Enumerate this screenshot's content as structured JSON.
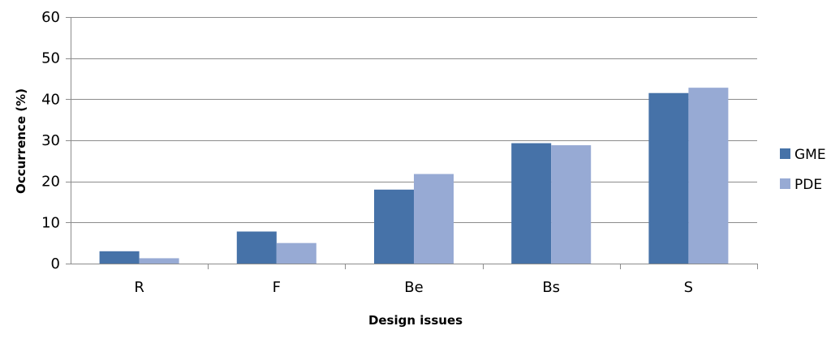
{
  "chart_data": {
    "type": "bar",
    "title": "",
    "xlabel": "Design issues",
    "ylabel": "Occurrence (%)",
    "categories": [
      "R",
      "F",
      "Be",
      "Bs",
      "S"
    ],
    "series": [
      {
        "name": "GME",
        "color": "#4672a8",
        "values": [
          3,
          7.8,
          18,
          29.3,
          41.5
        ]
      },
      {
        "name": "PDE",
        "color": "#97aad4",
        "values": [
          1.3,
          5,
          21.8,
          28.8,
          42.8
        ]
      }
    ],
    "ylim": [
      0,
      60
    ],
    "yticks": [
      "0",
      "10",
      "20",
      "30",
      "40",
      "50",
      "60"
    ],
    "grid": true,
    "legend_position": "right"
  }
}
